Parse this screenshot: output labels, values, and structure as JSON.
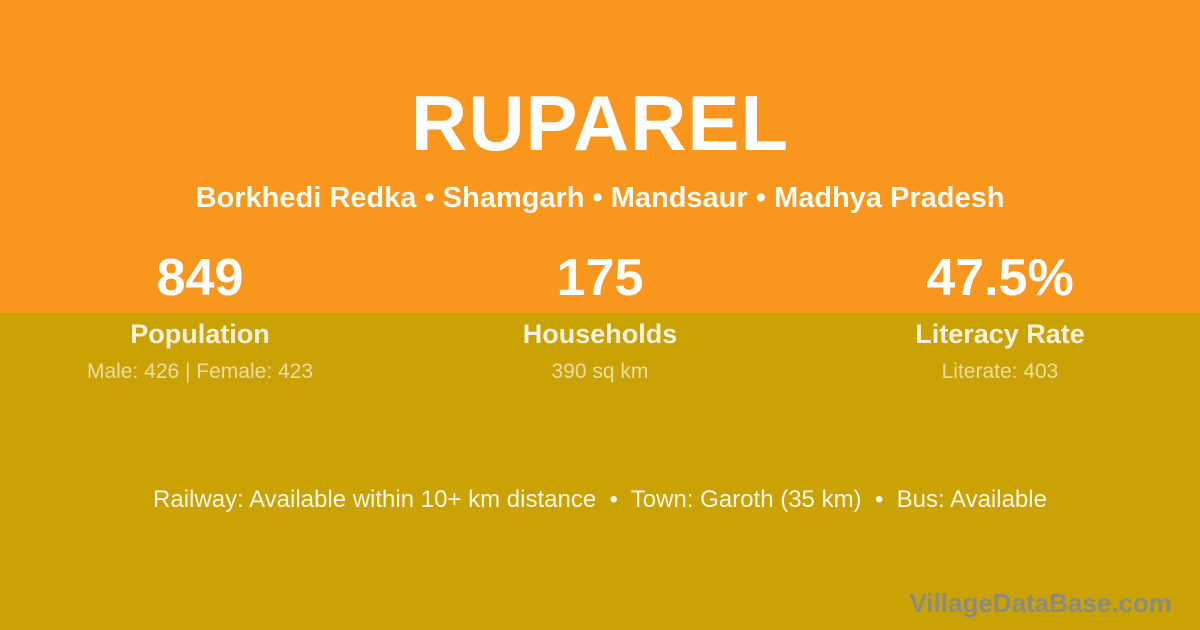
{
  "card": {
    "title": "RUPAREL",
    "subtitle": "Borkhedi Redka • Shamgarh • Mandsaur • Madhya Pradesh",
    "stats": [
      {
        "value": "849",
        "label": "Population",
        "detail": "Male: 426 | Female: 423"
      },
      {
        "value": "175",
        "label": "Households",
        "detail": "390 sq km"
      },
      {
        "value": "47.5%",
        "label": "Literacy Rate",
        "detail": "Literate: 403"
      }
    ],
    "amenities": "Railway: Available within 10+ km distance  •  Town: Garoth (35 km)  •  Bus: Available",
    "watermark": "VillageDataBase.com",
    "colors": {
      "top_background": "#F8961D",
      "bottom_background": "#CBA203",
      "heading_text": "#FFFFFF",
      "label_text": "#F8F1DE",
      "detail_text": "#ECDCA6",
      "amenities_text": "#FCF7EA",
      "watermark_text": "#8B8B85"
    }
  }
}
